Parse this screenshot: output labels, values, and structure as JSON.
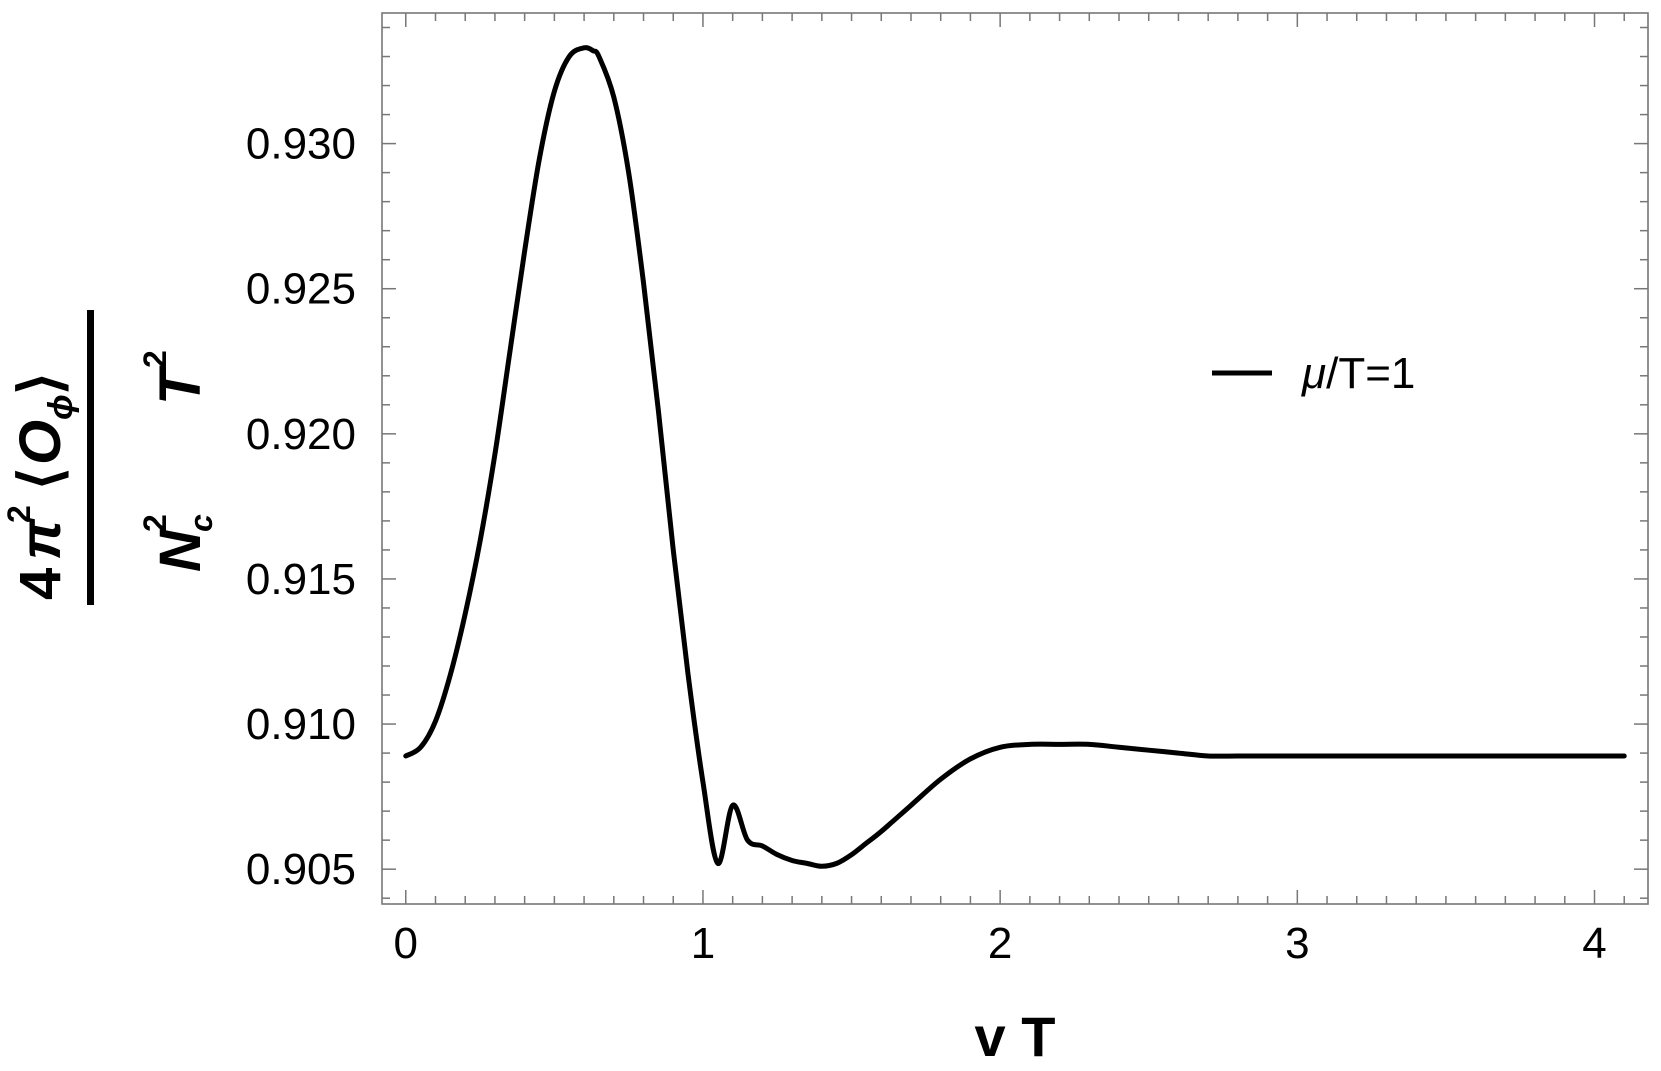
{
  "chart_data": {
    "type": "line",
    "xlabel": "v T",
    "ylabel": {
      "numerator": "4 π² ⟨O_φ⟩",
      "denominator": "N_c² T²",
      "parts": {
        "four": "4",
        "pi": "π",
        "sq": "2",
        "lang": "⟨",
        "o": "O",
        "phi": "ϕ",
        "rang": "⟩",
        "n": "N",
        "nsup": "2",
        "nsub": "c",
        "t": "T",
        "tsup": "2"
      }
    },
    "xlim": [
      -0.08,
      4.18
    ],
    "ylim": [
      0.9038,
      0.9345
    ],
    "x_ticks": [
      "0",
      "1",
      "2",
      "3",
      "4"
    ],
    "y_ticks": [
      "0.905",
      "0.910",
      "0.915",
      "0.920",
      "0.925",
      "0.930"
    ],
    "grid": false,
    "legend_position": "right",
    "series": [
      {
        "name": "μ/T=1",
        "color": "#000000",
        "x": [
          0,
          0.05,
          0.1,
          0.15,
          0.2,
          0.25,
          0.3,
          0.35,
          0.4,
          0.45,
          0.5,
          0.55,
          0.6,
          0.63,
          0.65,
          0.7,
          0.75,
          0.8,
          0.85,
          0.9,
          0.95,
          1.0,
          1.05,
          1.1,
          1.15,
          1.2,
          1.25,
          1.3,
          1.35,
          1.4,
          1.45,
          1.5,
          1.55,
          1.6,
          1.7,
          1.8,
          1.9,
          2.0,
          2.1,
          2.2,
          2.3,
          2.4,
          2.5,
          2.6,
          2.7,
          2.8,
          2.9,
          3.0,
          3.2,
          3.4,
          3.6,
          3.8,
          4.0,
          4.1
        ],
        "y": [
          0.9089,
          0.9092,
          0.9101,
          0.9117,
          0.9138,
          0.9163,
          0.9193,
          0.9228,
          0.9263,
          0.9295,
          0.9318,
          0.933,
          0.9333,
          0.9332,
          0.933,
          0.9316,
          0.929,
          0.9252,
          0.9208,
          0.916,
          0.9117,
          0.908,
          0.9052,
          0.9072,
          0.906,
          0.9058,
          0.9055,
          0.9053,
          0.9052,
          0.9051,
          0.9052,
          0.9055,
          0.9059,
          0.9063,
          0.9072,
          0.9081,
          0.9088,
          0.9092,
          0.9093,
          0.9093,
          0.9093,
          0.9092,
          0.9091,
          0.909,
          0.9089,
          0.9089,
          0.9089,
          0.9089,
          0.9089,
          0.9089,
          0.9089,
          0.9089,
          0.9089,
          0.9089
        ]
      }
    ]
  }
}
